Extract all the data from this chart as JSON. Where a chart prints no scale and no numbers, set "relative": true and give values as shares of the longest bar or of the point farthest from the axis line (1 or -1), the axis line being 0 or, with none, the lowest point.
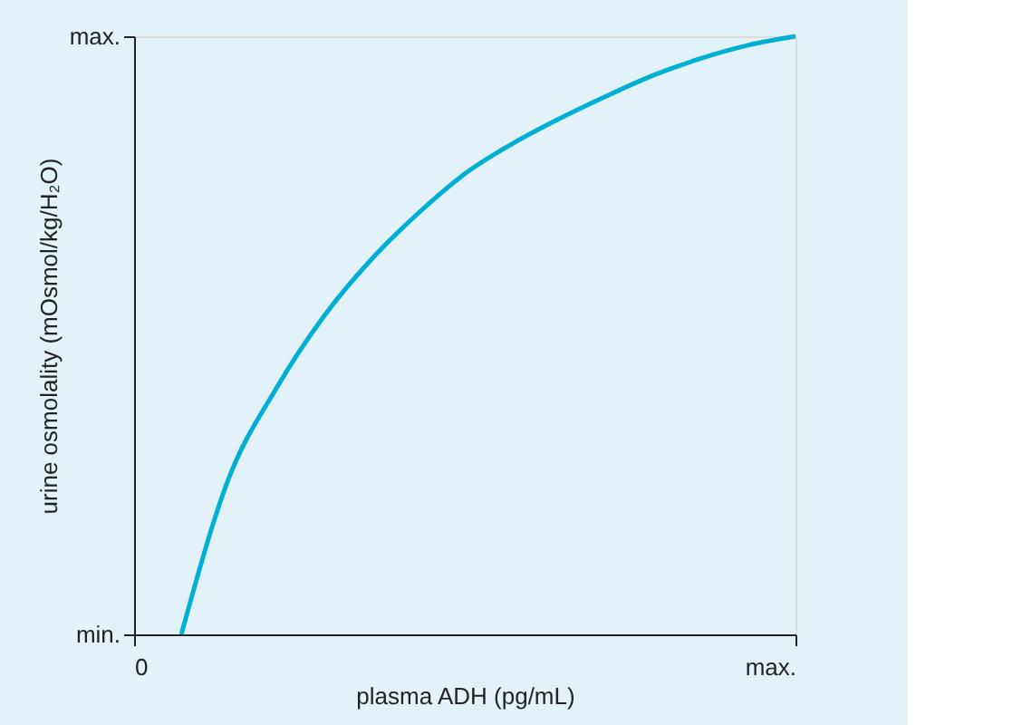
{
  "chart_data": {
    "type": "line",
    "relative": true,
    "xlabel": "plasma ADH (pg/mL)",
    "ylabel": "urine osmolality (mOsmol/kg/H₂O)",
    "categories": [
      null,
      null,
      null,
      null,
      null,
      null,
      null,
      null,
      null,
      null,
      null,
      null,
      null,
      null,
      null
    ],
    "series": [
      {
        "color": "#00b0d4",
        "values": [
          null,
          0,
          0.26,
          0.41,
          0.53,
          0.625,
          0.703,
          0.77,
          0.82,
          0.862,
          0.9,
          0.935,
          0.963,
          0.985,
          1.0
        ]
      }
    ],
    "annotations": [
      "min.",
      "max.",
      "0",
      "max."
    ],
    "marker": "none",
    "line_style": "solid"
  }
}
